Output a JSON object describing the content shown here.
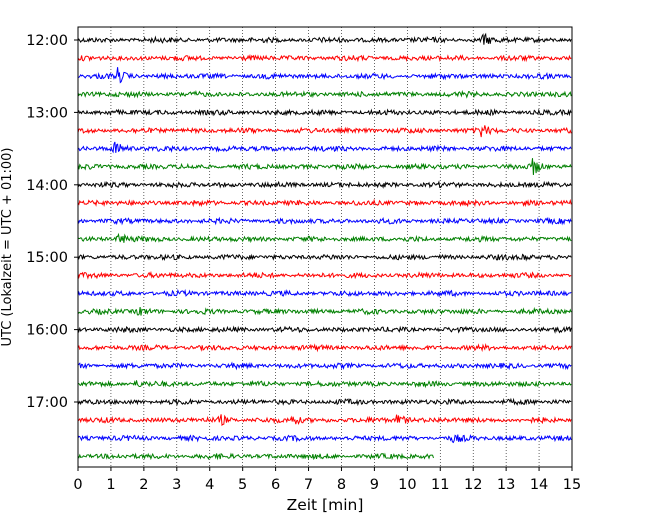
{
  "chart_data": {
    "type": "line",
    "title": "",
    "xlabel": "Zeit  [min]",
    "ylabel": "UTC (Lokalzeit = UTC + 01:00)",
    "xlim": [
      0,
      15
    ],
    "xticks": [
      "0",
      "1",
      "2",
      "3",
      "4",
      "5",
      "6",
      "7",
      "8",
      "9",
      "10",
      "11",
      "12",
      "13",
      "14",
      "15"
    ],
    "yticks": [
      "12:00",
      "13:00",
      "14:00",
      "15:00",
      "16:00",
      "17:00"
    ],
    "grid": "vertical dotted",
    "trace_interval_minutes": 15,
    "trace_colors": [
      "#000000",
      "#ff0000",
      "#0000ff",
      "#008000"
    ],
    "traces": [
      {
        "start": "12:00",
        "end_min": 15,
        "color": "#000000",
        "events": [
          {
            "t": 12.3,
            "amp": 0.6
          }
        ]
      },
      {
        "start": "12:15",
        "end_min": 15,
        "color": "#ff0000",
        "events": []
      },
      {
        "start": "12:30",
        "end_min": 15,
        "color": "#0000ff",
        "events": [
          {
            "t": 1.2,
            "amp": 0.8
          }
        ]
      },
      {
        "start": "12:45",
        "end_min": 15,
        "color": "#008000",
        "events": []
      },
      {
        "start": "13:00",
        "end_min": 15,
        "color": "#000000",
        "events": []
      },
      {
        "start": "13:15",
        "end_min": 15,
        "color": "#ff0000",
        "events": [
          {
            "t": 12.2,
            "amp": 0.9
          }
        ]
      },
      {
        "start": "13:30",
        "end_min": 15,
        "color": "#0000ff",
        "events": [
          {
            "t": 1.1,
            "amp": 0.9
          }
        ]
      },
      {
        "start": "13:45",
        "end_min": 15,
        "color": "#008000",
        "events": [
          {
            "t": 13.8,
            "amp": 1.0
          }
        ]
      },
      {
        "start": "14:00",
        "end_min": 15,
        "color": "#000000",
        "events": []
      },
      {
        "start": "14:15",
        "end_min": 15,
        "color": "#ff0000",
        "events": []
      },
      {
        "start": "14:30",
        "end_min": 15,
        "color": "#0000ff",
        "events": []
      },
      {
        "start": "14:45",
        "end_min": 15,
        "color": "#008000",
        "events": [
          {
            "t": 1.2,
            "amp": 0.8
          }
        ]
      },
      {
        "start": "15:00",
        "end_min": 15,
        "color": "#000000",
        "events": [
          {
            "t": 13.5,
            "amp": 0.4
          }
        ]
      },
      {
        "start": "15:15",
        "end_min": 15,
        "color": "#ff0000",
        "events": []
      },
      {
        "start": "15:30",
        "end_min": 15,
        "color": "#0000ff",
        "events": []
      },
      {
        "start": "15:45",
        "end_min": 15,
        "color": "#008000",
        "events": [
          {
            "t": 1.8,
            "amp": 0.5
          }
        ]
      },
      {
        "start": "16:00",
        "end_min": 15,
        "color": "#000000",
        "events": []
      },
      {
        "start": "16:15",
        "end_min": 15,
        "color": "#ff0000",
        "events": []
      },
      {
        "start": "16:30",
        "end_min": 15,
        "color": "#0000ff",
        "events": []
      },
      {
        "start": "16:45",
        "end_min": 15,
        "color": "#008000",
        "events": [
          {
            "t": 1.7,
            "amp": 0.4
          }
        ]
      },
      {
        "start": "17:00",
        "end_min": 15,
        "color": "#000000",
        "events": []
      },
      {
        "start": "17:15",
        "end_min": 15,
        "color": "#ff0000",
        "events": [
          {
            "t": 4.3,
            "amp": 0.6
          },
          {
            "t": 6.5,
            "amp": 0.6
          },
          {
            "t": 9.7,
            "amp": 0.9
          }
        ]
      },
      {
        "start": "17:30",
        "end_min": 15,
        "color": "#0000ff",
        "events": [
          {
            "t": 11.4,
            "amp": 0.3
          }
        ]
      },
      {
        "start": "17:45",
        "end_min": 10.8,
        "color": "#008000",
        "events": []
      }
    ]
  }
}
